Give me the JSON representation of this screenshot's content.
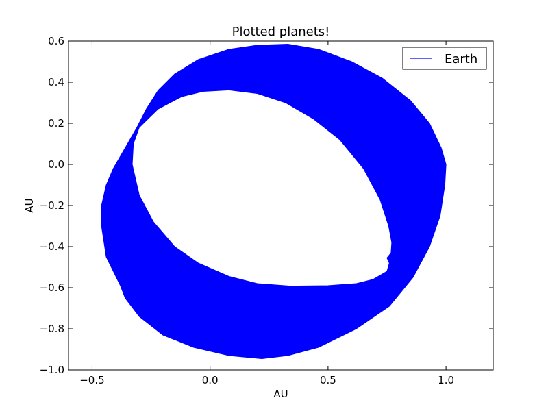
{
  "chart_data": {
    "type": "line",
    "title": "Plotted planets!",
    "xlabel": "AU",
    "ylabel": "AU",
    "xlim": [
      -0.6,
      1.2
    ],
    "ylim": [
      -1.0,
      0.6
    ],
    "xticks": [
      -0.5,
      0.0,
      0.5,
      1.0
    ],
    "xtick_labels": [
      "−0.5",
      "0.0",
      "0.5",
      "1.0"
    ],
    "yticks": [
      -1.0,
      -0.8,
      -0.6,
      -0.4,
      -0.2,
      0.0,
      0.2,
      0.4,
      0.6
    ],
    "ytick_labels": [
      "−1.0",
      "−0.8",
      "−0.6",
      "−0.4",
      "−0.2",
      "0.0",
      "0.2",
      "0.4",
      "0.6"
    ],
    "grid": false,
    "legend_position": "top-right",
    "series": [
      {
        "name": "Earth",
        "color": "#0000ff",
        "inner_boundary": [
          [
            0.75,
            -0.455
          ],
          [
            0.76,
            -0.48
          ],
          [
            0.75,
            -0.52
          ],
          [
            0.69,
            -0.56
          ],
          [
            0.62,
            -0.58
          ],
          [
            0.5,
            -0.59
          ],
          [
            0.34,
            -0.592
          ],
          [
            0.2,
            -0.58
          ],
          [
            0.08,
            -0.545
          ],
          [
            -0.05,
            -0.48
          ],
          [
            -0.15,
            -0.4
          ],
          [
            -0.24,
            -0.28
          ],
          [
            -0.3,
            -0.15
          ],
          [
            -0.33,
            0.0
          ],
          [
            -0.325,
            0.1
          ],
          [
            -0.3,
            0.18
          ],
          [
            -0.22,
            0.27
          ],
          [
            -0.12,
            0.33
          ],
          [
            -0.03,
            0.355
          ],
          [
            0.08,
            0.362
          ],
          [
            0.2,
            0.345
          ],
          [
            0.32,
            0.3
          ],
          [
            0.44,
            0.22
          ],
          [
            0.55,
            0.12
          ],
          [
            0.65,
            -0.02
          ],
          [
            0.72,
            -0.17
          ],
          [
            0.757,
            -0.3
          ],
          [
            0.77,
            -0.38
          ],
          [
            0.767,
            -0.43
          ],
          [
            0.75,
            -0.455
          ]
        ],
        "outer_boundary": [
          [
            -0.38,
            -0.59
          ],
          [
            -0.44,
            -0.45
          ],
          [
            -0.46,
            -0.3
          ],
          [
            -0.46,
            -0.2
          ],
          [
            -0.44,
            -0.1
          ],
          [
            -0.41,
            -0.02
          ],
          [
            -0.36,
            0.08
          ],
          [
            -0.31,
            0.18
          ],
          [
            -0.27,
            0.27
          ],
          [
            -0.22,
            0.36
          ],
          [
            -0.15,
            0.44
          ],
          [
            -0.05,
            0.51
          ],
          [
            0.08,
            0.56
          ],
          [
            0.2,
            0.58
          ],
          [
            0.33,
            0.585
          ],
          [
            0.46,
            0.56
          ],
          [
            0.6,
            0.5
          ],
          [
            0.73,
            0.42
          ],
          [
            0.85,
            0.31
          ],
          [
            0.93,
            0.2
          ],
          [
            0.98,
            0.08
          ],
          [
            1.0,
            0.0
          ],
          [
            0.995,
            -0.1
          ],
          [
            0.975,
            -0.25
          ],
          [
            0.93,
            -0.4
          ],
          [
            0.86,
            -0.55
          ],
          [
            0.76,
            -0.69
          ],
          [
            0.62,
            -0.8
          ],
          [
            0.46,
            -0.89
          ],
          [
            0.33,
            -0.93
          ],
          [
            0.22,
            -0.945
          ],
          [
            0.08,
            -0.93
          ],
          [
            -0.07,
            -0.89
          ],
          [
            -0.2,
            -0.83
          ],
          [
            -0.3,
            -0.74
          ],
          [
            -0.36,
            -0.65
          ],
          [
            -0.38,
            -0.59
          ]
        ]
      }
    ]
  }
}
